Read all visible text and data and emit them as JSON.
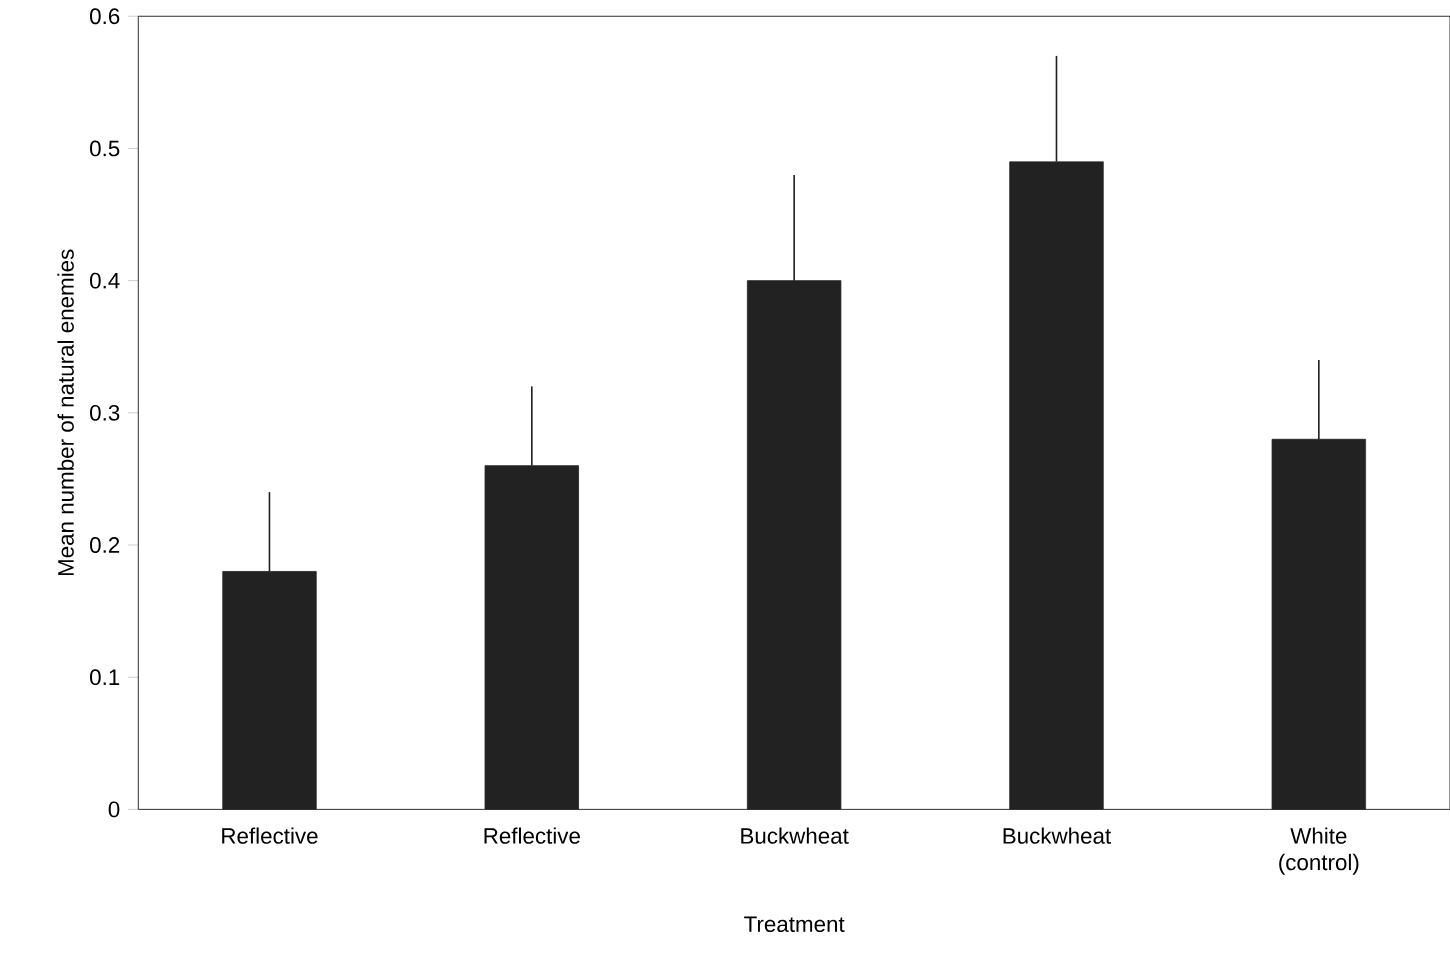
{
  "chart_data": {
    "type": "bar",
    "xlabel": "Treatment",
    "ylabel": "Mean number of natural enemies",
    "categories": [
      "Reflective",
      "Reflective",
      "Buckwheat",
      "Buckwheat",
      "White (control)"
    ],
    "values": [
      0.18,
      0.26,
      0.4,
      0.49,
      0.28
    ],
    "errors": [
      [
        0.18,
        0.24
      ],
      [
        0.26,
        0.32
      ],
      [
        0.4,
        0.48
      ],
      [
        0.49,
        0.57
      ],
      [
        0.28,
        0.34
      ]
    ],
    "color": "#222222",
    "ylim": [
      0,
      0.6
    ],
    "yticks": [
      0,
      0.1,
      0.2,
      0.3,
      0.4,
      0.5,
      0.6
    ],
    "grid": false
  }
}
